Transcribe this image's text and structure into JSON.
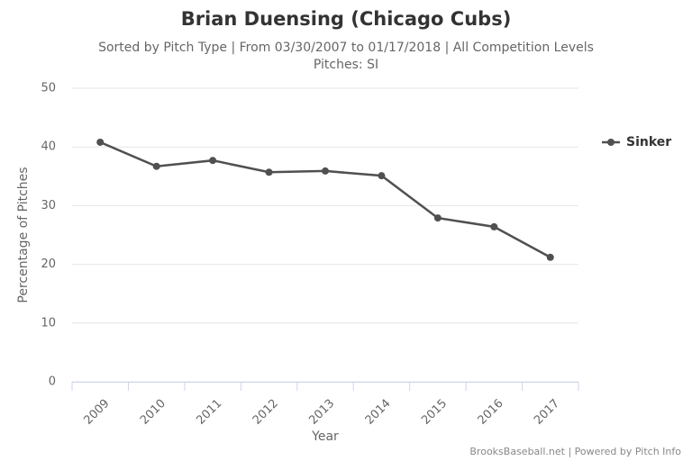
{
  "chart_data": {
    "type": "line",
    "title": "Brian Duensing (Chicago Cubs)",
    "subtitle": [
      "Sorted by Pitch Type | From 03/30/2007 to 01/17/2018 | All Competition Levels",
      "Pitches: SI"
    ],
    "x_label": "Year",
    "y_label": "Percentage of Pitches",
    "categories": [
      "2009",
      "2010",
      "2011",
      "2012",
      "2013",
      "2014",
      "2015",
      "2016",
      "2017"
    ],
    "series": [
      {
        "name": "Sinker",
        "color": "#505050",
        "values": [
          40.8,
          36.7,
          37.7,
          35.7,
          35.9,
          35.1,
          27.9,
          26.4,
          21.2
        ]
      }
    ],
    "ylim": [
      0,
      50
    ],
    "yticks": [
      0,
      10,
      20,
      30,
      40,
      50
    ],
    "grid": true,
    "legend": "right",
    "credits": "BrooksBaseball.net | Powered by Pitch Info"
  }
}
